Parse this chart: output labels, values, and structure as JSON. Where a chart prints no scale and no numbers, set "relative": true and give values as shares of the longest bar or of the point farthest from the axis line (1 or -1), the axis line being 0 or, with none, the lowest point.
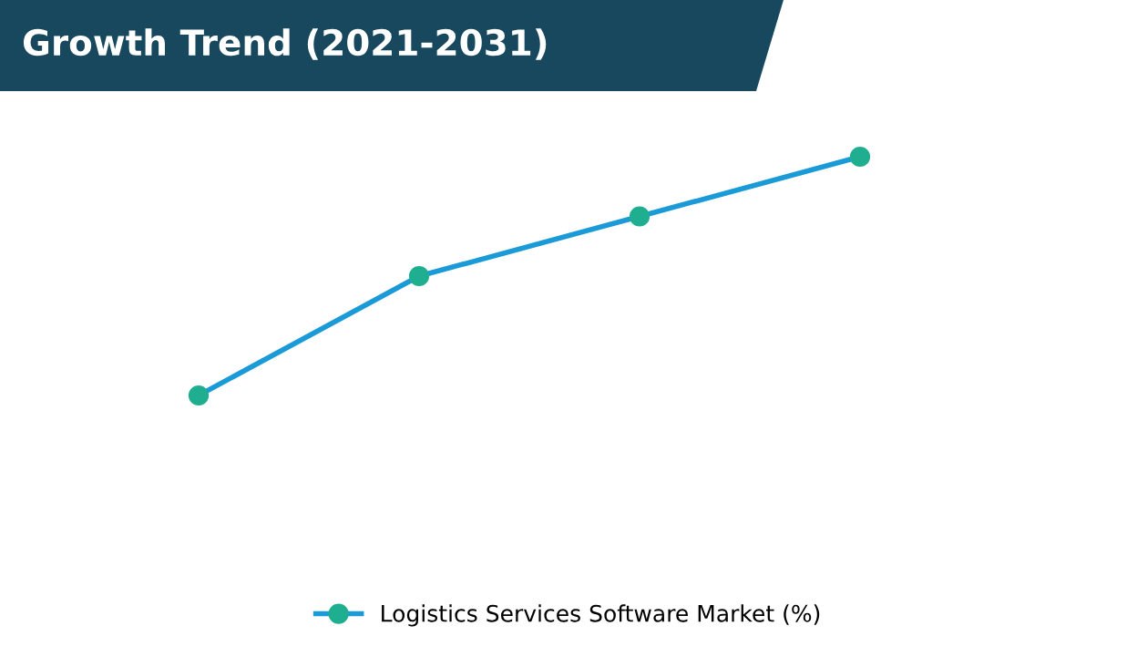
{
  "chart_data": {
    "type": "line",
    "title": "Growth Trend (2021-2031)",
    "relative": true,
    "categories": [
      null,
      null,
      null,
      null
    ],
    "series": [
      {
        "name": "Logistics Services Software Market (%)",
        "color": "#1a9ad6",
        "colors": [
          "#1fae8f",
          "#1fae8f",
          "#1fae8f",
          "#1fae8f"
        ],
        "values": [
          0,
          0.5,
          0.75,
          1
        ]
      }
    ],
    "marker": "circle",
    "line_style": "solid",
    "legend": "bottom"
  }
}
